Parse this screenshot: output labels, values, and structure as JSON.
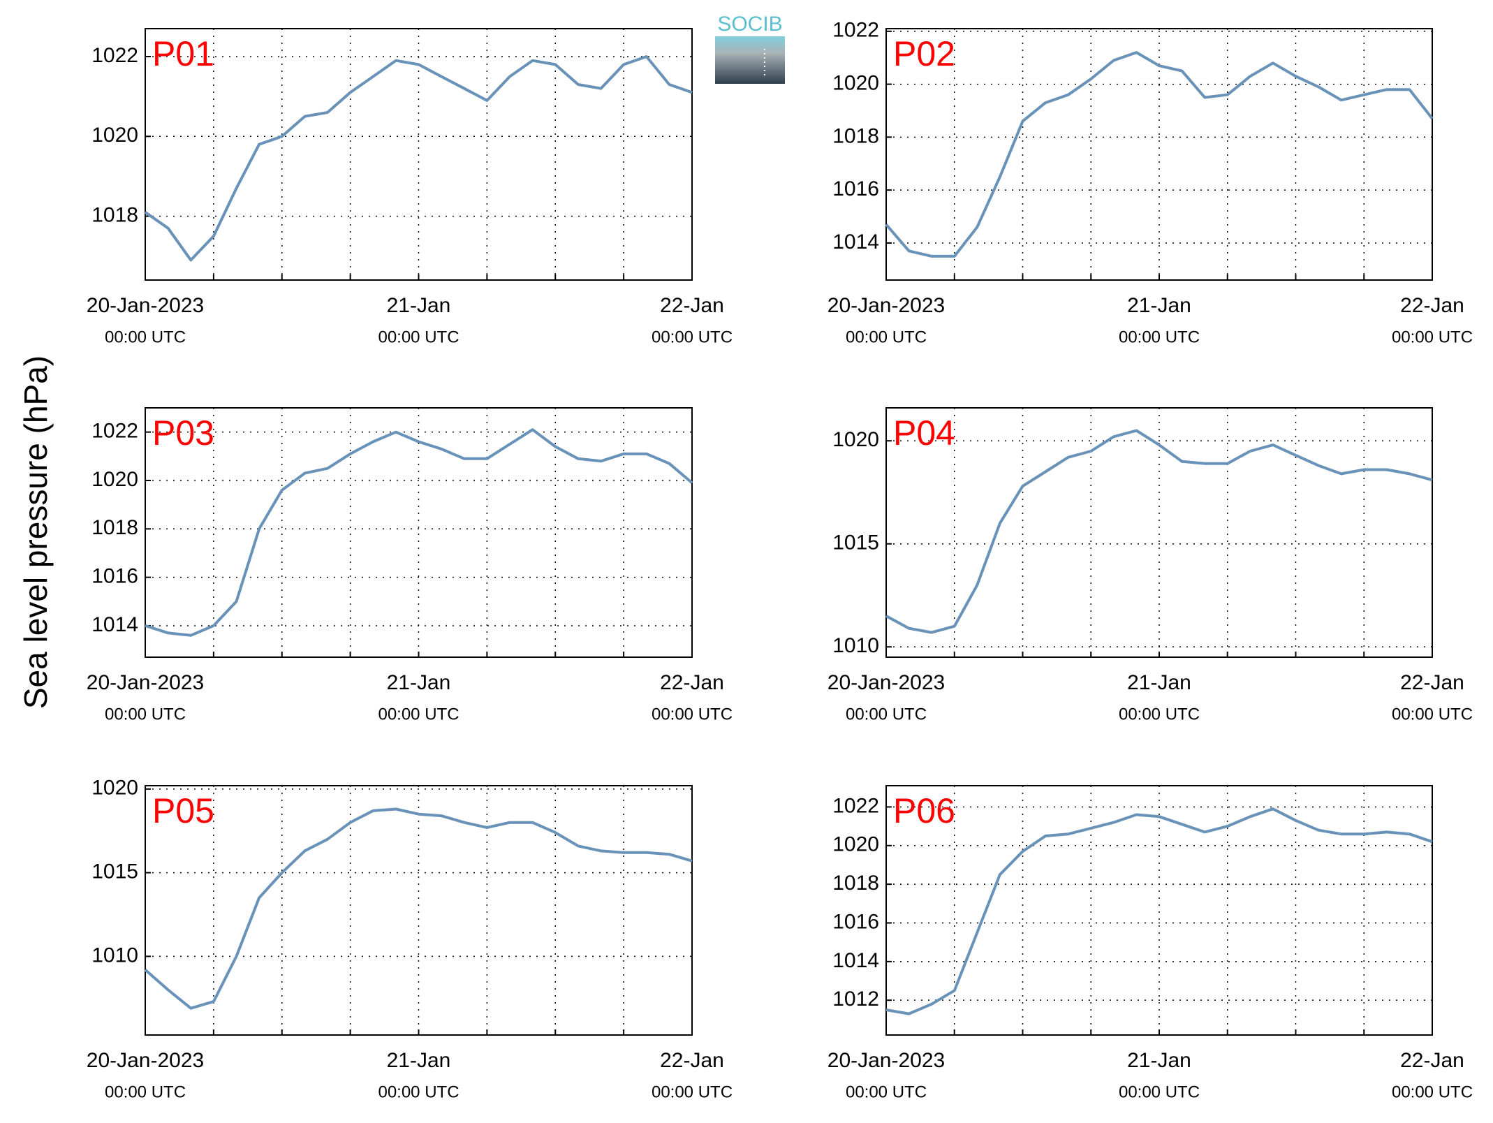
{
  "y_label": "Sea level pressure (hPa)",
  "logo": "SOCIB",
  "chart_data": [
    {
      "type": "line",
      "title": "P01",
      "color": "#6892b8",
      "x": [
        0,
        2,
        4,
        6,
        8,
        10,
        12,
        14,
        16,
        18,
        20,
        22,
        24,
        26,
        28,
        30,
        32,
        34,
        36,
        38,
        40,
        42,
        44,
        46,
        48
      ],
      "values": [
        1018.1,
        1017.7,
        1016.9,
        1017.5,
        1018.7,
        1019.8,
        1020.0,
        1020.5,
        1020.6,
        1021.1,
        1021.5,
        1021.9,
        1021.8,
        1021.5,
        1021.2,
        1020.9,
        1021.5,
        1021.9,
        1021.8,
        1021.3,
        1021.2,
        1021.8,
        1022.0,
        1021.3,
        1021.1
      ],
      "xlim": [
        0,
        48
      ],
      "ylim": [
        1016.4,
        1022.7
      ],
      "yticks": [
        1018,
        1020,
        1022
      ],
      "xticks": [
        {
          "value": 0,
          "label": "20-Jan-2023",
          "sublabel": "00:00 UTC"
        },
        {
          "value": 24,
          "label": "21-Jan",
          "sublabel": "00:00 UTC"
        },
        {
          "value": 48,
          "label": "22-Jan",
          "sublabel": "00:00 UTC"
        }
      ],
      "xminor": [
        6,
        12,
        18,
        30,
        36,
        42
      ],
      "grid": true
    },
    {
      "type": "line",
      "title": "P02",
      "color": "#6892b8",
      "x": [
        0,
        2,
        4,
        6,
        8,
        10,
        12,
        14,
        16,
        18,
        20,
        22,
        24,
        26,
        28,
        30,
        32,
        34,
        36,
        38,
        40,
        42,
        44,
        46,
        48
      ],
      "values": [
        1014.7,
        1013.7,
        1013.5,
        1013.5,
        1014.6,
        1016.5,
        1018.6,
        1019.3,
        1019.6,
        1020.2,
        1020.9,
        1021.2,
        1020.7,
        1020.5,
        1019.5,
        1019.6,
        1020.3,
        1020.8,
        1020.3,
        1019.9,
        1019.4,
        1019.6,
        1019.8,
        1019.8,
        1018.7
      ],
      "xlim": [
        0,
        48
      ],
      "ylim": [
        1012.6,
        1022.1
      ],
      "yticks": [
        1014,
        1016,
        1018,
        1020,
        1022
      ],
      "xticks": [
        {
          "value": 0,
          "label": "20-Jan-2023",
          "sublabel": "00:00 UTC"
        },
        {
          "value": 24,
          "label": "21-Jan",
          "sublabel": "00:00 UTC"
        },
        {
          "value": 48,
          "label": "22-Jan",
          "sublabel": "00:00 UTC"
        }
      ],
      "xminor": [
        6,
        12,
        18,
        30,
        36,
        42
      ],
      "grid": true
    },
    {
      "type": "line",
      "title": "P03",
      "color": "#6892b8",
      "x": [
        0,
        2,
        4,
        6,
        8,
        10,
        12,
        14,
        16,
        18,
        20,
        22,
        24,
        26,
        28,
        30,
        32,
        34,
        36,
        38,
        40,
        42,
        44,
        46,
        48
      ],
      "values": [
        1014.0,
        1013.7,
        1013.6,
        1014.0,
        1015.0,
        1018.0,
        1019.6,
        1020.3,
        1020.5,
        1021.1,
        1021.6,
        1022.0,
        1021.6,
        1021.3,
        1020.9,
        1020.9,
        1021.5,
        1022.1,
        1021.4,
        1020.9,
        1020.8,
        1021.1,
        1021.1,
        1020.7,
        1019.9
      ],
      "xlim": [
        0,
        48
      ],
      "ylim": [
        1012.7,
        1023.0
      ],
      "yticks": [
        1014,
        1016,
        1018,
        1020,
        1022
      ],
      "xticks": [
        {
          "value": 0,
          "label": "20-Jan-2023",
          "sublabel": "00:00 UTC"
        },
        {
          "value": 24,
          "label": "21-Jan",
          "sublabel": "00:00 UTC"
        },
        {
          "value": 48,
          "label": "22-Jan",
          "sublabel": "00:00 UTC"
        }
      ],
      "xminor": [
        6,
        12,
        18,
        30,
        36,
        42
      ],
      "grid": true
    },
    {
      "type": "line",
      "title": "P04",
      "color": "#6892b8",
      "x": [
        0,
        2,
        4,
        6,
        8,
        10,
        12,
        14,
        16,
        18,
        20,
        22,
        24,
        26,
        28,
        30,
        32,
        34,
        36,
        38,
        40,
        42,
        44,
        46,
        48
      ],
      "values": [
        1011.5,
        1010.9,
        1010.7,
        1011.0,
        1013.0,
        1016.0,
        1017.8,
        1018.5,
        1019.2,
        1019.5,
        1020.2,
        1020.5,
        1019.8,
        1019.0,
        1018.9,
        1018.9,
        1019.5,
        1019.8,
        1019.3,
        1018.8,
        1018.4,
        1018.6,
        1018.6,
        1018.4,
        1018.1
      ],
      "xlim": [
        0,
        48
      ],
      "ylim": [
        1009.5,
        1021.6
      ],
      "yticks": [
        1010,
        1015,
        1020
      ],
      "xticks": [
        {
          "value": 0,
          "label": "20-Jan-2023",
          "sublabel": "00:00 UTC"
        },
        {
          "value": 24,
          "label": "21-Jan",
          "sublabel": "00:00 UTC"
        },
        {
          "value": 48,
          "label": "22-Jan",
          "sublabel": "00:00 UTC"
        }
      ],
      "xminor": [
        6,
        12,
        18,
        30,
        36,
        42
      ],
      "grid": true
    },
    {
      "type": "line",
      "title": "P05",
      "color": "#6892b8",
      "x": [
        0,
        2,
        4,
        6,
        8,
        10,
        12,
        14,
        16,
        18,
        20,
        22,
        24,
        26,
        28,
        30,
        32,
        34,
        36,
        38,
        40,
        42,
        44,
        46,
        48
      ],
      "values": [
        1009.2,
        1008.0,
        1006.9,
        1007.3,
        1010.0,
        1013.5,
        1015.0,
        1016.3,
        1017.0,
        1018.0,
        1018.7,
        1018.8,
        1018.5,
        1018.4,
        1018.0,
        1017.7,
        1018.0,
        1018.0,
        1017.4,
        1016.6,
        1016.3,
        1016.2,
        1016.2,
        1016.1,
        1015.7
      ],
      "xlim": [
        0,
        48
      ],
      "ylim": [
        1005.3,
        1020.2
      ],
      "yticks": [
        1010,
        1015,
        1020
      ],
      "xticks": [
        {
          "value": 0,
          "label": "20-Jan-2023",
          "sublabel": "00:00 UTC"
        },
        {
          "value": 24,
          "label": "21-Jan",
          "sublabel": "00:00 UTC"
        },
        {
          "value": 48,
          "label": "22-Jan",
          "sublabel": "00:00 UTC"
        }
      ],
      "xminor": [
        6,
        12,
        18,
        30,
        36,
        42
      ],
      "grid": true
    },
    {
      "type": "line",
      "title": "P06",
      "color": "#6892b8",
      "x": [
        0,
        2,
        4,
        6,
        8,
        10,
        12,
        14,
        16,
        18,
        20,
        22,
        24,
        26,
        28,
        30,
        32,
        34,
        36,
        38,
        40,
        42,
        44,
        46,
        48
      ],
      "values": [
        1011.5,
        1011.3,
        1011.8,
        1012.5,
        1015.5,
        1018.5,
        1019.7,
        1020.5,
        1020.6,
        1020.9,
        1021.2,
        1021.6,
        1021.5,
        1021.1,
        1020.7,
        1021.0,
        1021.5,
        1021.9,
        1021.3,
        1020.8,
        1020.6,
        1020.6,
        1020.7,
        1020.6,
        1020.2
      ],
      "xlim": [
        0,
        48
      ],
      "ylim": [
        1010.2,
        1023.1
      ],
      "yticks": [
        1012,
        1014,
        1016,
        1018,
        1020,
        1022
      ],
      "xticks": [
        {
          "value": 0,
          "label": "20-Jan-2023",
          "sublabel": "00:00 UTC"
        },
        {
          "value": 24,
          "label": "21-Jan",
          "sublabel": "00:00 UTC"
        },
        {
          "value": 48,
          "label": "22-Jan",
          "sublabel": "00:00 UTC"
        }
      ],
      "xminor": [
        6,
        12,
        18,
        30,
        36,
        42
      ],
      "grid": true
    }
  ]
}
